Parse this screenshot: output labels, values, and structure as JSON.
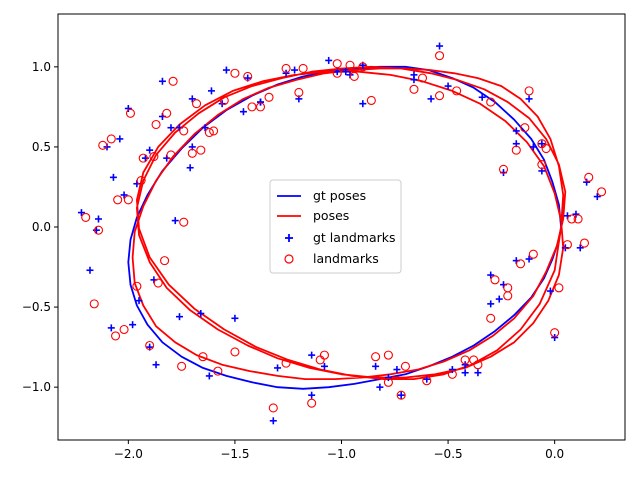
{
  "chart_data": {
    "type": "scatter",
    "title": "",
    "xlabel": "",
    "ylabel": "",
    "xlim": [
      -2.33,
      0.33
    ],
    "ylim": [
      -1.33,
      1.33
    ],
    "xticks": [
      {
        "value": -2.0,
        "label": "−2.0"
      },
      {
        "value": -1.5,
        "label": "−1.5"
      },
      {
        "value": -1.0,
        "label": "−1.0"
      },
      {
        "value": -0.5,
        "label": "−0.5"
      },
      {
        "value": 0.0,
        "label": "0.0"
      }
    ],
    "yticks": [
      {
        "value": -1.0,
        "label": "−1.0"
      },
      {
        "value": -0.5,
        "label": "−0.5"
      },
      {
        "value": 0.0,
        "label": "0.0"
      },
      {
        "value": 0.5,
        "label": "0.5"
      },
      {
        "value": 1.0,
        "label": "1.0"
      }
    ],
    "grid": false,
    "legend": {
      "placement": "center",
      "entries": [
        {
          "name": "gt poses",
          "marker": "line",
          "color": "#0000ff"
        },
        {
          "name": "poses",
          "marker": "line",
          "color": "#ff0000"
        },
        {
          "name": "gt landmarks",
          "marker": "plus",
          "color": "#0000ff"
        },
        {
          "name": "landmarks",
          "marker": "circle",
          "color": "#ff0000"
        }
      ]
    },
    "series": [
      {
        "name": "gt poses",
        "kind": "line",
        "color": "#0000ff",
        "x": [
          0.03,
          0.02,
          -0.01,
          -0.05,
          -0.11,
          -0.19,
          -0.28,
          -0.38,
          -0.48,
          -0.59,
          -0.7,
          -0.82,
          -0.94,
          -1.06,
          -1.18,
          -1.3,
          -1.42,
          -1.54,
          -1.65,
          -1.75,
          -1.84,
          -1.91,
          -1.96,
          -1.99,
          -2.0,
          -1.99,
          -1.96,
          -1.91,
          -1.84,
          -1.75,
          -1.65,
          -1.54,
          -1.42,
          -1.3,
          -1.18,
          -1.06,
          -0.94,
          -0.82,
          -0.7,
          -0.59,
          -0.48,
          -0.38,
          -0.28,
          -0.19,
          -0.11,
          -0.05,
          -0.01,
          0.02,
          0.03
        ],
        "y": [
          0.0,
          0.14,
          0.28,
          0.42,
          0.55,
          0.67,
          0.78,
          0.87,
          0.93,
          0.98,
          1.0,
          1.0,
          0.99,
          0.97,
          0.94,
          0.89,
          0.82,
          0.73,
          0.62,
          0.49,
          0.35,
          0.2,
          0.06,
          -0.08,
          -0.22,
          -0.36,
          -0.49,
          -0.61,
          -0.72,
          -0.81,
          -0.88,
          -0.93,
          -0.97,
          -1.0,
          -1.01,
          -1.0,
          -0.98,
          -0.95,
          -0.92,
          -0.87,
          -0.81,
          -0.74,
          -0.65,
          -0.55,
          -0.44,
          -0.32,
          -0.2,
          -0.08,
          0.0
        ]
      },
      {
        "name": "poses",
        "kind": "line",
        "color": "#ff0000",
        "x": [
          0.03,
          0.04,
          0.02,
          -0.02,
          -0.08,
          -0.16,
          -0.25,
          -0.36,
          -0.47,
          -0.58,
          -0.7,
          -0.82,
          -0.95,
          -1.08,
          -1.21,
          -1.34,
          -1.46,
          -1.58,
          -1.69,
          -1.79,
          -1.87,
          -1.93,
          -1.97,
          -1.98,
          -1.97,
          -1.93,
          -1.87,
          -1.78,
          -1.68,
          -1.56,
          -1.43,
          -1.3,
          -1.17,
          -1.03,
          -0.9,
          -0.77,
          -0.64,
          -0.52,
          -0.4,
          -0.29,
          -0.19,
          -0.1,
          -0.04,
          0.01,
          0.04,
          0.05,
          0.02,
          -0.04,
          -0.12,
          -0.22,
          -0.33,
          -0.46,
          -0.58,
          -0.72,
          -0.86,
          -1.0,
          -1.14,
          -1.28,
          -1.42,
          -1.55,
          -1.67,
          -1.78,
          -1.87,
          -1.93,
          -1.96,
          -1.95,
          -1.9,
          -1.82,
          -1.71,
          -1.58,
          -1.44,
          -1.3,
          -1.15,
          -1.0,
          -0.85,
          -0.7,
          -0.56,
          -0.42,
          -0.3,
          -0.19,
          -0.1,
          -0.03,
          0.02,
          0.04,
          0.03,
          0.0,
          -0.05,
          -0.13,
          -0.23,
          -0.35,
          -0.48,
          -0.62,
          -0.77,
          -0.92,
          -1.07,
          -1.22,
          -1.37,
          -1.51,
          -1.64,
          -1.76,
          -1.86,
          -1.93,
          -1.96,
          -1.95,
          -1.9,
          -1.81,
          -1.69,
          -1.55,
          -1.4,
          -1.25,
          -1.1,
          -0.95,
          -0.8,
          -0.66,
          -0.52,
          -0.39,
          -0.27,
          -0.16,
          -0.07,
          0.0,
          0.03
        ],
        "y": [
          0.0,
          0.2,
          0.38,
          0.55,
          0.69,
          0.8,
          0.88,
          0.93,
          0.96,
          0.98,
          0.99,
          0.99,
          0.98,
          0.96,
          0.92,
          0.87,
          0.8,
          0.7,
          0.58,
          0.44,
          0.29,
          0.13,
          -0.03,
          -0.19,
          -0.35,
          -0.49,
          -0.62,
          -0.72,
          -0.8,
          -0.86,
          -0.9,
          -0.93,
          -0.95,
          -0.95,
          -0.94,
          -0.92,
          -0.89,
          -0.84,
          -0.77,
          -0.68,
          -0.57,
          -0.43,
          -0.28,
          -0.12,
          0.05,
          0.22,
          0.39,
          0.55,
          0.68,
          0.78,
          0.86,
          0.92,
          0.96,
          0.99,
          1.0,
          0.99,
          0.97,
          0.93,
          0.88,
          0.81,
          0.71,
          0.59,
          0.45,
          0.29,
          0.12,
          -0.05,
          -0.22,
          -0.38,
          -0.52,
          -0.64,
          -0.74,
          -0.82,
          -0.88,
          -0.92,
          -0.94,
          -0.94,
          -0.92,
          -0.88,
          -0.81,
          -0.72,
          -0.6,
          -0.46,
          -0.3,
          -0.13,
          0.04,
          0.21,
          0.38,
          0.53,
          0.66,
          0.77,
          0.85,
          0.91,
          0.95,
          0.97,
          0.97,
          0.95,
          0.91,
          0.85,
          0.76,
          0.64,
          0.5,
          0.34,
          0.17,
          -0.01,
          -0.19,
          -0.36,
          -0.51,
          -0.64,
          -0.75,
          -0.83,
          -0.89,
          -0.93,
          -0.95,
          -0.95,
          -0.92,
          -0.86,
          -0.77,
          -0.64,
          -0.48,
          -0.27,
          0.0
        ]
      },
      {
        "name": "gt landmarks",
        "kind": "plus",
        "color": "#0000ff",
        "x": [
          -2.22,
          -2.18,
          -2.14,
          -2.1,
          -2.07,
          -2.04,
          -2.0,
          -1.98,
          -1.95,
          -1.92,
          -1.9,
          -1.87,
          -1.84,
          -1.8,
          -1.76,
          -1.71,
          -1.66,
          -1.61,
          -1.56,
          -1.5,
          -1.44,
          -1.38,
          -1.32,
          -1.26,
          -1.2,
          -1.14,
          -1.08,
          -1.02,
          -0.96,
          -0.9,
          -0.84,
          -0.78,
          -0.72,
          -0.66,
          -0.6,
          -0.54,
          -0.48,
          -0.42,
          -0.36,
          -0.3,
          -0.24,
          -0.18,
          -0.12,
          -0.06,
          0.0,
          0.05,
          0.1,
          0.15,
          0.2,
          -2.15,
          -2.08,
          -2.02,
          -1.96,
          -1.9,
          -1.84,
          -1.78,
          -1.7,
          -1.62,
          -1.54,
          -1.46,
          -1.38,
          -1.3,
          -1.22,
          -1.14,
          -1.06,
          -0.98,
          -0.9,
          -0.82,
          -0.74,
          -0.66,
          -0.58,
          -0.5,
          -0.42,
          -0.34,
          -0.26,
          -0.18,
          -0.1,
          -0.02,
          0.06,
          0.12,
          -1.88,
          -1.82,
          -1.76,
          -1.7,
          -1.64,
          -0.3,
          -0.24,
          -0.18,
          -0.12,
          -0.06
        ],
        "y": [
          0.09,
          -0.27,
          0.05,
          0.5,
          0.31,
          0.55,
          0.74,
          -0.61,
          -0.46,
          0.43,
          -0.75,
          -0.86,
          0.91,
          0.62,
          -0.56,
          0.37,
          -0.54,
          0.85,
          0.77,
          -0.57,
          0.93,
          0.78,
          -1.21,
          0.96,
          0.8,
          -1.05,
          -0.87,
          0.97,
          0.95,
          1.01,
          -0.87,
          -0.94,
          -1.05,
          0.92,
          -0.95,
          1.13,
          -0.89,
          -0.91,
          -0.91,
          -0.48,
          0.34,
          0.52,
          0.8,
          0.35,
          -0.69,
          -0.13,
          0.08,
          0.28,
          0.19,
          -0.02,
          -0.63,
          0.2,
          0.27,
          0.48,
          0.69,
          0.04,
          0.5,
          -0.93,
          0.98,
          0.72,
          0.78,
          -0.88,
          0.98,
          -0.8,
          1.04,
          0.97,
          0.77,
          -1.0,
          -0.89,
          0.95,
          0.8,
          0.88,
          -0.86,
          0.81,
          -0.45,
          0.6,
          0.5,
          -0.4,
          0.07,
          -0.13,
          -0.33,
          0.43,
          0.62,
          0.8,
          0.62,
          -0.3,
          -0.36,
          -0.21,
          -0.2,
          0.52
        ]
      },
      {
        "name": "landmarks",
        "kind": "circle",
        "color": "#ff0000",
        "x": [
          -2.2,
          -2.16,
          -2.12,
          -2.08,
          -2.05,
          -2.02,
          -1.99,
          -1.96,
          -1.93,
          -1.9,
          -1.87,
          -1.83,
          -1.79,
          -1.75,
          -1.7,
          -1.65,
          -1.6,
          -1.55,
          -1.5,
          -1.44,
          -1.38,
          -1.32,
          -1.26,
          -1.2,
          -1.14,
          -1.08,
          -1.02,
          -0.96,
          -0.9,
          -0.84,
          -0.78,
          -0.72,
          -0.66,
          -0.6,
          -0.54,
          -0.48,
          -0.42,
          -0.36,
          -0.3,
          -0.24,
          -0.18,
          -0.12,
          -0.06,
          0.0,
          0.06,
          0.11,
          0.16,
          0.22,
          -2.14,
          -2.06,
          -2.0,
          -1.94,
          -1.88,
          -1.82,
          -1.74,
          -1.66,
          -1.58,
          -1.5,
          -1.42,
          -1.34,
          -1.26,
          -1.18,
          -1.1,
          -1.02,
          -0.94,
          -0.86,
          -0.78,
          -0.7,
          -0.62,
          -0.54,
          -0.46,
          -0.38,
          -0.3,
          -0.22,
          -0.14,
          -0.06,
          0.02,
          0.08,
          0.14,
          -1.86,
          -1.8,
          -1.74,
          -1.68,
          -1.62,
          -0.28,
          -0.22,
          -0.16,
          -0.1,
          -0.04
        ],
        "y": [
          0.06,
          -0.48,
          0.51,
          0.55,
          0.17,
          -0.64,
          0.71,
          -0.37,
          0.43,
          -0.74,
          0.64,
          -0.21,
          0.91,
          -0.87,
          0.46,
          -0.81,
          0.6,
          0.79,
          -0.78,
          0.94,
          0.75,
          -1.13,
          0.99,
          0.84,
          -1.1,
          -0.8,
          0.96,
          1.01,
          1.0,
          -0.81,
          -0.8,
          -1.05,
          0.86,
          -0.96,
          1.07,
          -0.92,
          -0.83,
          -0.86,
          -0.57,
          0.36,
          0.48,
          0.85,
          0.39,
          -0.66,
          -0.11,
          0.05,
          0.31,
          0.22,
          -0.02,
          -0.68,
          0.17,
          0.29,
          0.44,
          0.71,
          0.03,
          0.48,
          -0.9,
          0.96,
          0.75,
          0.81,
          -0.85,
          0.99,
          -0.83,
          1.02,
          0.94,
          0.79,
          -0.97,
          -0.87,
          0.93,
          0.82,
          0.85,
          -0.83,
          0.78,
          -0.43,
          0.62,
          0.52,
          -0.38,
          0.05,
          -0.1,
          -0.35,
          0.45,
          0.6,
          0.77,
          0.59,
          -0.33,
          -0.38,
          -0.23,
          -0.17,
          0.49
        ]
      }
    ]
  }
}
